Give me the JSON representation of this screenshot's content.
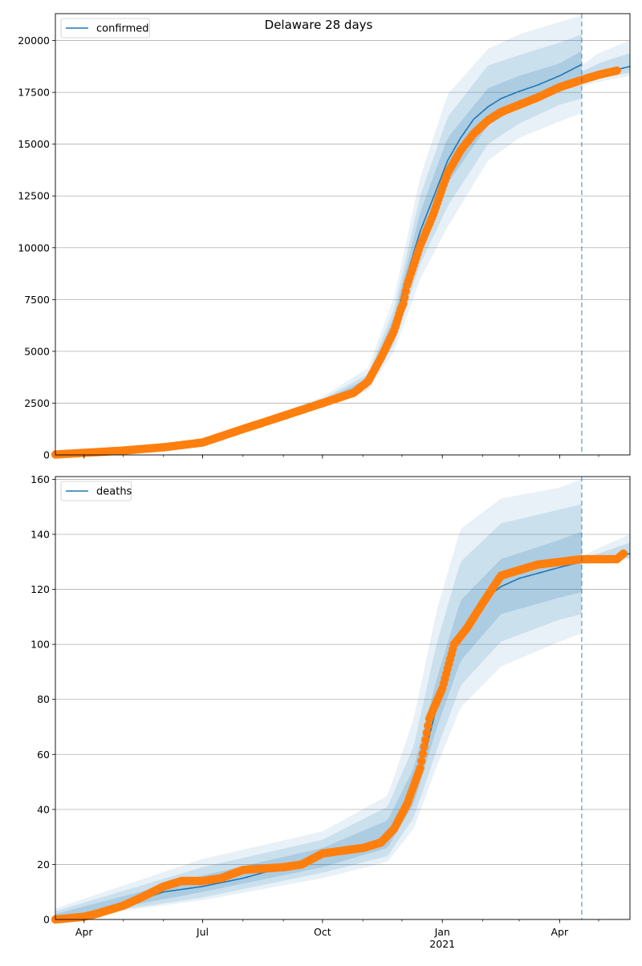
{
  "figure_title": "Delaware 28 days",
  "chart_data": [
    {
      "type": "line",
      "legend": "confirmed",
      "legend_position": "upper-left",
      "grid": "horizontal",
      "x_axis": {
        "type": "date",
        "range": [
          "2020-03-10",
          "2021-05-25"
        ],
        "major_ticks": [
          {
            "date": "2020-04-01",
            "label": "Apr"
          },
          {
            "date": "2020-07-01",
            "label": "Jul"
          },
          {
            "date": "2020-10-01",
            "label": "Oct"
          },
          {
            "date": "2021-01-01",
            "label": "Jan",
            "sublabel": "2021"
          },
          {
            "date": "2021-04-01",
            "label": "Apr"
          }
        ]
      },
      "y_axis": {
        "range": [
          0,
          21300
        ],
        "ticks": [
          0,
          2500,
          5000,
          7500,
          10000,
          12500,
          15000,
          17500,
          20000
        ]
      },
      "forecast_start": "2021-04-18",
      "model_series": {
        "name": "confirmed",
        "color": "#1f77b4",
        "dates": [
          "2020-03-10",
          "2020-04-01",
          "2020-05-01",
          "2020-06-01",
          "2020-07-01",
          "2020-08-01",
          "2020-09-01",
          "2020-10-01",
          "2020-10-25",
          "2020-11-05",
          "2020-11-15",
          "2020-11-25",
          "2020-12-05",
          "2020-12-15",
          "2020-12-25",
          "2021-01-05",
          "2021-01-15",
          "2021-01-25",
          "2021-02-05",
          "2021-02-15",
          "2021-03-01",
          "2021-03-15",
          "2021-04-01",
          "2021-04-18"
        ],
        "values": [
          10,
          80,
          180,
          350,
          550,
          1250,
          1900,
          2550,
          3050,
          3550,
          4500,
          6200,
          8700,
          10800,
          12400,
          14200,
          15300,
          16200,
          16800,
          17200,
          17550,
          17850,
          18300,
          18850
        ],
        "forecast_dates": [
          "2021-04-18",
          "2021-05-01",
          "2021-05-15",
          "2021-05-25"
        ],
        "forecast_values": [
          18200,
          18450,
          18600,
          18750
        ]
      },
      "observed_series": {
        "color": "#ff7f0e",
        "dates": [
          "2020-03-10",
          "2020-04-01",
          "2020-05-01",
          "2020-06-01",
          "2020-07-01",
          "2020-08-01",
          "2020-09-01",
          "2020-10-01",
          "2020-10-25",
          "2020-11-05",
          "2020-11-15",
          "2020-11-25",
          "2020-11-30",
          "2020-12-02",
          "2020-12-05",
          "2020-12-15",
          "2020-12-25",
          "2021-01-05",
          "2021-01-15",
          "2021-01-25",
          "2021-02-05",
          "2021-02-15",
          "2021-03-01",
          "2021-03-15",
          "2021-04-01",
          "2021-04-18",
          "2021-05-01",
          "2021-05-15"
        ],
        "values": [
          20,
          100,
          210,
          370,
          600,
          1250,
          1880,
          2500,
          3000,
          3550,
          4700,
          6000,
          7000,
          7300,
          8200,
          10100,
          11600,
          13600,
          14700,
          15500,
          16150,
          16550,
          16900,
          17250,
          17750,
          18100,
          18350,
          18550
        ]
      },
      "bands": [
        {
          "opacity": 0.1,
          "dates": [
            "2020-03-10",
            "2020-07-01",
            "2020-10-01",
            "2020-11-05",
            "2020-11-25",
            "2020-12-15",
            "2021-01-05",
            "2021-02-05",
            "2021-03-01",
            "2021-04-01",
            "2021-04-18"
          ],
          "lower": [
            0,
            400,
            2300,
            3100,
            5000,
            8500,
            11000,
            14200,
            15300,
            16100,
            16500
          ],
          "upper": [
            100,
            700,
            2800,
            4200,
            7600,
            13400,
            17400,
            19600,
            20300,
            20900,
            21200
          ]
        },
        {
          "opacity": 0.14,
          "dates": [
            "2020-03-10",
            "2020-07-01",
            "2020-10-01",
            "2020-11-05",
            "2020-11-25",
            "2020-12-15",
            "2021-01-05",
            "2021-02-05",
            "2021-03-01",
            "2021-04-01",
            "2021-04-18"
          ],
          "lower": [
            0,
            450,
            2400,
            3250,
            5350,
            9200,
            12000,
            15000,
            16000,
            16900,
            17200
          ],
          "upper": [
            60,
            650,
            2700,
            3900,
            7050,
            12500,
            16300,
            18800,
            19300,
            19900,
            20300
          ]
        },
        {
          "opacity": 0.18,
          "dates": [
            "2020-03-10",
            "2020-07-01",
            "2020-10-01",
            "2020-11-05",
            "2020-11-25",
            "2020-12-15",
            "2021-01-05",
            "2021-02-05",
            "2021-03-01",
            "2021-04-01",
            "2021-04-18"
          ],
          "lower": [
            0,
            500,
            2480,
            3400,
            5700,
            9900,
            13100,
            15900,
            16800,
            17500,
            18000
          ],
          "upper": [
            30,
            600,
            2620,
            3700,
            6700,
            11700,
            15300,
            17700,
            18300,
            18900,
            19500
          ]
        }
      ],
      "forecast_bands": [
        {
          "opacity": 0.1,
          "dates": [
            "2021-04-18",
            "2021-05-01",
            "2021-05-25"
          ],
          "lower": [
            17800,
            18000,
            18300
          ],
          "upper": [
            18800,
            19400,
            20000
          ]
        },
        {
          "opacity": 0.16,
          "dates": [
            "2021-04-18",
            "2021-05-01",
            "2021-05-25"
          ],
          "lower": [
            18000,
            18200,
            18450
          ],
          "upper": [
            18500,
            18900,
            19400
          ]
        }
      ]
    },
    {
      "type": "line",
      "legend": "deaths",
      "legend_position": "upper-left",
      "grid": "horizontal",
      "x_axis": {
        "type": "date",
        "range": [
          "2020-03-10",
          "2021-05-25"
        ],
        "major_ticks": [
          {
            "date": "2020-04-01",
            "label": "Apr"
          },
          {
            "date": "2020-07-01",
            "label": "Jul"
          },
          {
            "date": "2020-10-01",
            "label": "Oct"
          },
          {
            "date": "2021-01-01",
            "label": "Jan",
            "sublabel": "2021"
          },
          {
            "date": "2021-04-01",
            "label": "Apr"
          }
        ]
      },
      "y_axis": {
        "range": [
          0,
          161
        ],
        "ticks": [
          0,
          20,
          40,
          60,
          80,
          100,
          120,
          140,
          160
        ]
      },
      "forecast_start": "2021-04-18",
      "model_series": {
        "name": "deaths",
        "color": "#1f77b4",
        "dates": [
          "2020-03-10",
          "2020-04-01",
          "2020-05-01",
          "2020-06-01",
          "2020-07-01",
          "2020-08-01",
          "2020-09-01",
          "2020-10-01",
          "2020-11-01",
          "2020-11-20",
          "2020-12-01",
          "2020-12-10",
          "2020-12-20",
          "2020-12-28",
          "2021-01-05",
          "2021-01-15",
          "2021-02-01",
          "2021-02-15",
          "2021-03-01",
          "2021-04-01",
          "2021-04-18"
        ],
        "values": [
          0,
          1,
          5,
          10,
          12,
          15,
          19,
          23,
          25,
          30,
          37,
          48,
          63,
          78,
          92,
          104,
          116,
          121,
          124,
          128,
          130
        ],
        "forecast_dates": [
          "2021-04-18",
          "2021-05-01",
          "2021-05-15",
          "2021-05-25"
        ],
        "forecast_values": [
          130,
          131,
          132,
          133
        ]
      },
      "observed_series": {
        "color": "#ff7f0e",
        "dates": [
          "2020-03-10",
          "2020-04-01",
          "2020-04-10",
          "2020-05-01",
          "2020-05-15",
          "2020-06-01",
          "2020-06-15",
          "2020-07-01",
          "2020-07-15",
          "2020-08-01",
          "2020-09-01",
          "2020-09-15",
          "2020-10-01",
          "2020-11-01",
          "2020-11-15",
          "2020-11-25",
          "2020-12-05",
          "2020-12-15",
          "2020-12-22",
          "2021-01-01",
          "2021-01-10",
          "2021-01-20",
          "2021-02-01",
          "2021-02-15",
          "2021-03-01",
          "2021-03-15",
          "2021-04-01",
          "2021-04-18",
          "2021-05-01",
          "2021-05-15",
          "2021-05-20"
        ],
        "values": [
          0,
          1,
          2,
          5,
          8,
          12,
          14,
          14,
          15,
          18,
          19,
          20,
          24,
          26,
          28,
          33,
          42,
          55,
          73,
          84,
          100,
          106,
          115,
          125,
          127,
          129,
          130,
          131,
          131,
          131,
          133
        ]
      },
      "bands": [
        {
          "opacity": 0.1,
          "dates": [
            "2020-03-10",
            "2020-07-01",
            "2020-10-01",
            "2020-11-20",
            "2020-12-10",
            "2020-12-28",
            "2021-01-15",
            "2021-02-15",
            "2021-04-01",
            "2021-04-18"
          ],
          "lower": [
            0,
            7,
            15,
            21,
            33,
            56,
            77,
            92,
            101,
            104
          ],
          "upper": [
            4,
            22,
            32,
            45,
            73,
            113,
            142,
            153,
            157,
            160
          ]
        },
        {
          "opacity": 0.14,
          "dates": [
            "2020-03-10",
            "2020-07-01",
            "2020-10-01",
            "2020-11-20",
            "2020-12-10",
            "2020-12-28",
            "2021-01-15",
            "2021-02-15",
            "2021-04-01",
            "2021-04-18"
          ],
          "lower": [
            0,
            8,
            17,
            23,
            37,
            62,
            85,
            101,
            109,
            111
          ],
          "upper": [
            3,
            19,
            29,
            41,
            63,
            101,
            130,
            144,
            149,
            151
          ]
        },
        {
          "opacity": 0.18,
          "dates": [
            "2020-03-10",
            "2020-07-01",
            "2020-10-01",
            "2020-11-20",
            "2020-12-10",
            "2020-12-28",
            "2021-01-15",
            "2021-02-15",
            "2021-04-01",
            "2021-04-18"
          ],
          "lower": [
            0,
            10,
            19,
            26,
            42,
            70,
            94,
            111,
            117,
            119
          ],
          "upper": [
            2,
            16,
            26,
            36,
            55,
            88,
            116,
            131,
            138,
            141
          ]
        }
      ],
      "forecast_bands": [
        {
          "opacity": 0.1,
          "dates": [
            "2021-04-18",
            "2021-05-01",
            "2021-05-25"
          ],
          "lower": [
            129,
            130,
            131
          ],
          "upper": [
            132,
            135,
            140
          ]
        },
        {
          "opacity": 0.16,
          "dates": [
            "2021-04-18",
            "2021-05-01",
            "2021-05-25"
          ],
          "lower": [
            130,
            130.5,
            131.5
          ],
          "upper": [
            131.5,
            133,
            137
          ]
        }
      ]
    }
  ]
}
